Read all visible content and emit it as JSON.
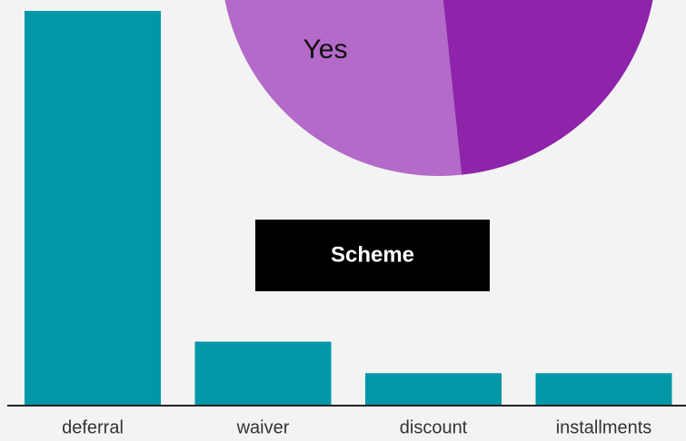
{
  "chart_data": [
    {
      "type": "pie",
      "categories": [
        "Yes",
        null
      ],
      "values": [
        50,
        50
      ],
      "colors": [
        "#b36ac9",
        "#8e24aa"
      ]
    },
    {
      "type": "bar",
      "categories": [
        "deferral",
        "waiver",
        "discount",
        "installments"
      ],
      "values": [
        25,
        4,
        2,
        2
      ],
      "color": "#0097a7",
      "ylim": [
        0,
        25
      ]
    }
  ],
  "legend_box": {
    "title": "Scheme"
  }
}
